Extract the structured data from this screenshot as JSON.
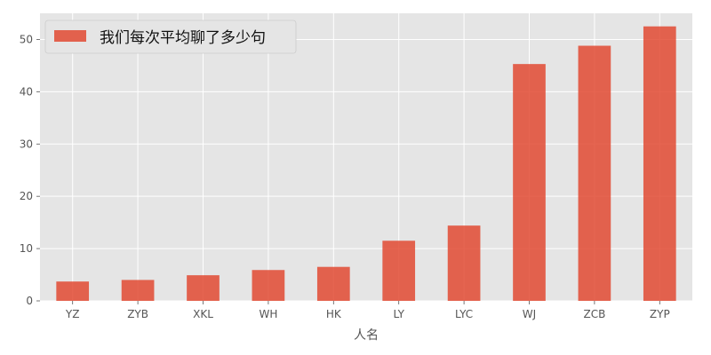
{
  "chart_data": {
    "type": "bar",
    "categories": [
      "YZ",
      "ZYB",
      "XKL",
      "WH",
      "HK",
      "LY",
      "LYC",
      "WJ",
      "ZCB",
      "ZYP"
    ],
    "series": [
      {
        "name": "我们每次平均聊了多少句",
        "values": [
          3.7,
          4.0,
          4.9,
          5.9,
          6.5,
          11.5,
          14.4,
          45.3,
          48.8,
          52.5
        ],
        "color": "#E24A33"
      }
    ],
    "xlabel": "人名",
    "ylabel": "",
    "ylim": [
      0,
      55
    ],
    "yticks": [
      0,
      10,
      20,
      30,
      40,
      50
    ],
    "grid": true,
    "legend_position": "top-left",
    "background": "#E5E5E5"
  }
}
